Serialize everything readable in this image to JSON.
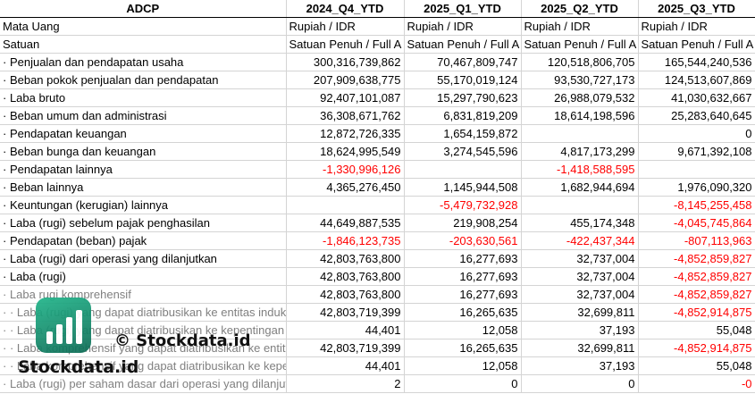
{
  "header": {
    "company": "ADCP",
    "periods": [
      "2024_Q4_YTD",
      "2025_Q1_YTD",
      "2025_Q2_YTD",
      "2025_Q3_YTD"
    ]
  },
  "rows": [
    {
      "label": "Mata Uang",
      "values": [
        "Rupiah / IDR",
        "Rupiah / IDR",
        "Rupiah / IDR",
        "Rupiah / IDR"
      ],
      "kind": "text"
    },
    {
      "label": "Satuan",
      "values": [
        "Satuan Penuh / Full A",
        "Satuan Penuh / Full A",
        "Satuan Penuh / Full A",
        "Satuan Penuh / Full A"
      ],
      "kind": "text"
    },
    {
      "label": "· Penjualan dan pendapatan usaha",
      "values": [
        "300,316,739,862",
        "70,467,809,747",
        "120,518,806,705",
        "165,544,240,536"
      ]
    },
    {
      "label": "· Beban pokok penjualan dan pendapatan",
      "values": [
        "207,909,638,775",
        "55,170,019,124",
        "93,530,727,173",
        "124,513,607,869"
      ]
    },
    {
      "label": "· Laba bruto",
      "values": [
        "92,407,101,087",
        "15,297,790,623",
        "26,988,079,532",
        "41,030,632,667"
      ]
    },
    {
      "label": "· Beban umum dan administrasi",
      "values": [
        "36,308,671,762",
        "6,831,819,209",
        "18,614,198,596",
        "25,283,640,645"
      ]
    },
    {
      "label": "· Pendapatan keuangan",
      "values": [
        "12,872,726,335",
        "1,654,159,872",
        "",
        "0"
      ]
    },
    {
      "label": "· Beban bunga dan keuangan",
      "values": [
        "18,624,995,549",
        "3,274,545,596",
        "4,817,173,299",
        "9,671,392,108"
      ]
    },
    {
      "label": "· Pendapatan lainnya",
      "values": [
        "-1,330,996,126",
        "",
        "-1,418,588,595",
        ""
      ]
    },
    {
      "label": "· Beban lainnya",
      "values": [
        "4,365,276,450",
        "1,145,944,508",
        "1,682,944,694",
        "1,976,090,320"
      ]
    },
    {
      "label": "· Keuntungan (kerugian) lainnya",
      "values": [
        "",
        "-5,479,732,928",
        "",
        "-8,145,255,458"
      ]
    },
    {
      "label": "· Laba (rugi) sebelum pajak penghasilan",
      "values": [
        "44,649,887,535",
        "219,908,254",
        "455,174,348",
        "-4,045,745,864"
      ]
    },
    {
      "label": "· Pendapatan (beban) pajak",
      "values": [
        "-1,846,123,735",
        "-203,630,561",
        "-422,437,344",
        "-807,113,963"
      ]
    },
    {
      "label": "· Laba (rugi) dari operasi yang dilanjutkan",
      "values": [
        "42,803,763,800",
        "16,277,693",
        "32,737,004",
        "-4,852,859,827"
      ]
    },
    {
      "label": "· Laba (rugi)",
      "values": [
        "42,803,763,800",
        "16,277,693",
        "32,737,004",
        "-4,852,859,827"
      ]
    },
    {
      "label": "· Laba rugi komprehensif",
      "values": [
        "42,803,763,800",
        "16,277,693",
        "32,737,004",
        "-4,852,859,827"
      ],
      "grey": true
    },
    {
      "label": "· · Laba (rugi) yang dapat diatribusikan ke entitas induk",
      "values": [
        "42,803,719,399",
        "16,265,635",
        "32,699,811",
        "-4,852,914,875"
      ],
      "grey": true
    },
    {
      "label": "· · Laba (rugi) yang dapat diatribusikan ke kepentingan non-pengendali",
      "values": [
        "44,401",
        "12,058",
        "37,193",
        "55,048"
      ],
      "grey": true
    },
    {
      "label": "· · Laba komprehensif yang dapat diatribusikan ke entitas induk",
      "values": [
        "42,803,719,399",
        "16,265,635",
        "32,699,811",
        "-4,852,914,875"
      ],
      "grey": true
    },
    {
      "label": "· · Laba komprehensif yang dapat diatribusikan ke kepentingan non-pengendali",
      "values": [
        "44,401",
        "12,058",
        "37,193",
        "55,048"
      ],
      "grey": true
    },
    {
      "label": "· Laba (rugi) per saham dasar dari operasi yang dilanjutkan",
      "values": [
        "2",
        "0",
        "0",
        "-0"
      ],
      "grey": true
    }
  ],
  "watermark": {
    "copyright": "© Stockdata.id",
    "brand": "Stockdata.id",
    "logo_color": "#1a9e78"
  },
  "colors": {
    "negative": "#ff0000",
    "grid": "#d4d4d4"
  }
}
